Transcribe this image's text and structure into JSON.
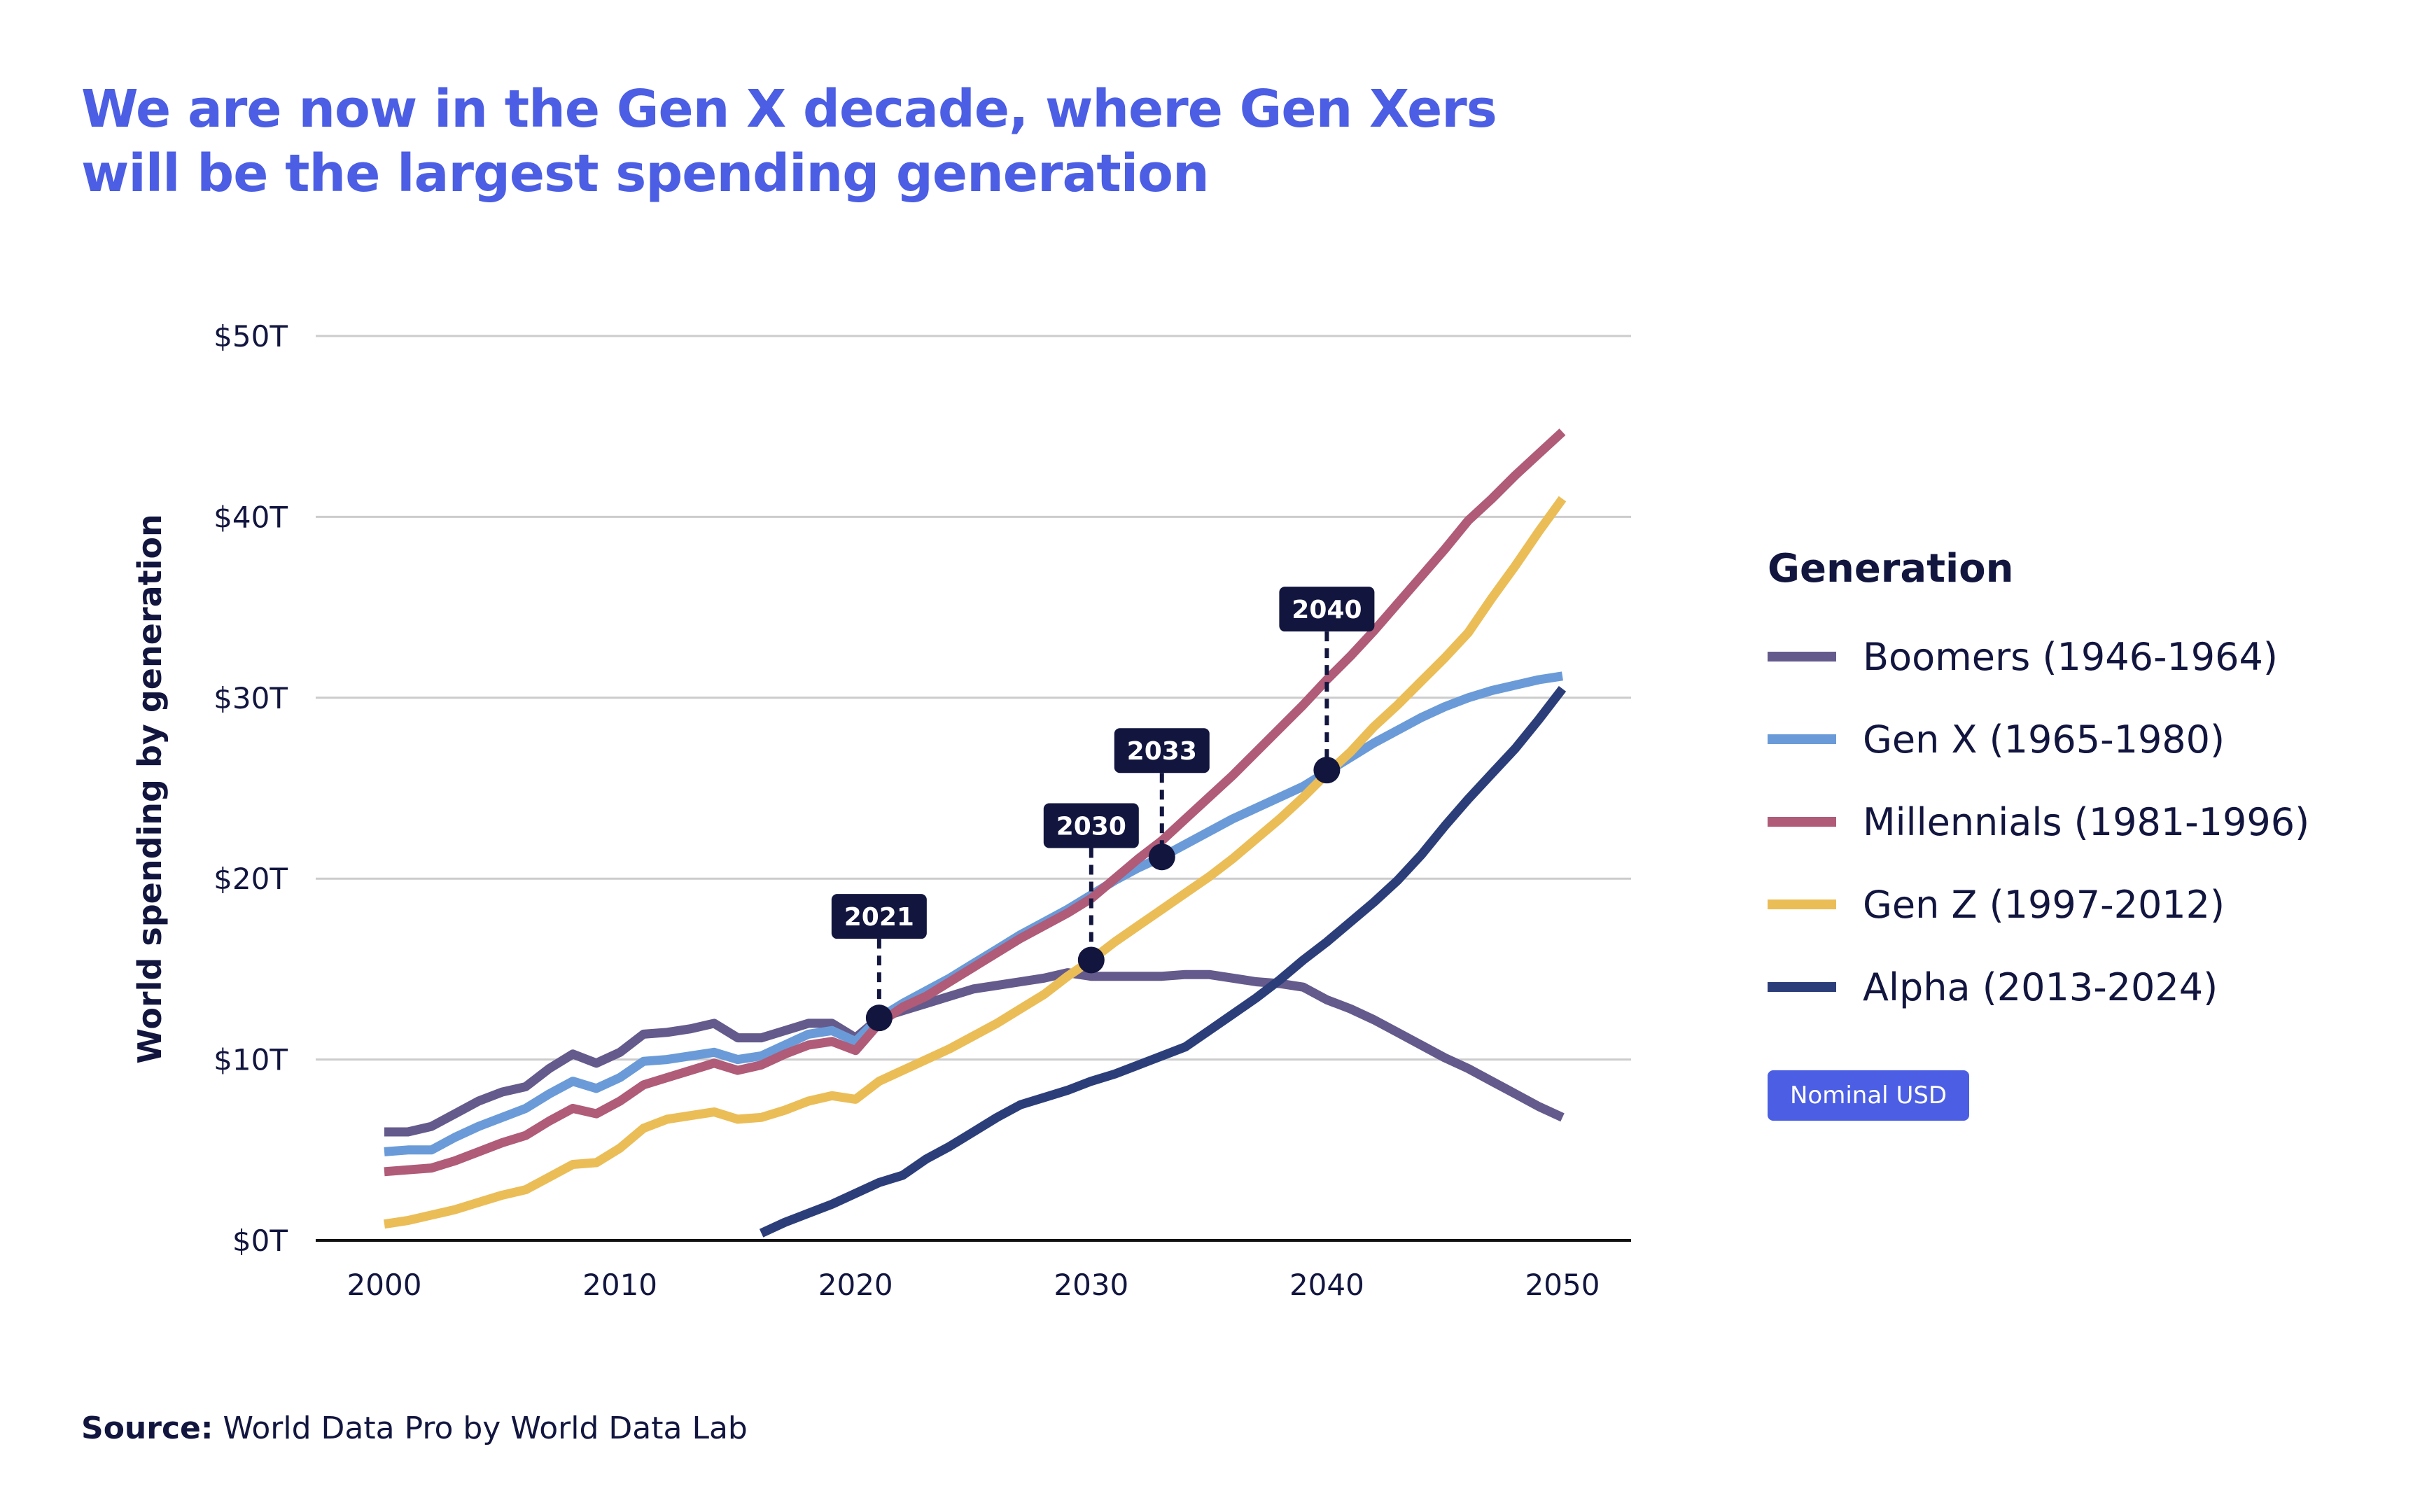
{
  "title_lines": [
    "We are now in the Gen X decade, where Gen Xers",
    "will be the largest spending generation"
  ],
  "source_label": "Source:",
  "source_text": " World Data Pro by World Data Lab",
  "badge": "Nominal USD",
  "chart_data": {
    "type": "line",
    "ylabel": "World spending by generation",
    "xlabel": "",
    "xlim": [
      2000,
      2050
    ],
    "ylim": [
      0,
      50
    ],
    "x_ticks": [
      2000,
      2010,
      2020,
      2030,
      2040,
      2050
    ],
    "y_ticks": [
      0,
      10,
      20,
      30,
      40,
      50
    ],
    "y_tick_labels": [
      "$0T",
      "$10T",
      "$20T",
      "$30T",
      "$40T",
      "$50T"
    ],
    "grid": "horizontal",
    "legend_title": "Generation",
    "legend_position": "right",
    "series": [
      {
        "name": "Boomers (1946-1964)",
        "color": "#655a8c",
        "start": 2000,
        "values": [
          6.0,
          6.0,
          6.3,
          7.0,
          7.7,
          8.2,
          8.5,
          9.5,
          10.3,
          9.8,
          10.4,
          11.4,
          11.5,
          11.7,
          12.0,
          11.2,
          11.2,
          11.6,
          12.0,
          12.0,
          11.2,
          12.3,
          12.7,
          13.1,
          13.5,
          13.9,
          14.1,
          14.3,
          14.5,
          14.8,
          14.6,
          14.6,
          14.6,
          14.6,
          14.7,
          14.7,
          14.5,
          14.3,
          14.2,
          14.0,
          13.3,
          12.8,
          12.2,
          11.5,
          10.8,
          10.1,
          9.5,
          8.8,
          8.1,
          7.4,
          6.8
        ]
      },
      {
        "name": "Gen X (1965-1980)",
        "color": "#6a9bd8",
        "start": 2000,
        "values": [
          4.9,
          5.0,
          5.0,
          5.7,
          6.3,
          6.8,
          7.3,
          8.1,
          8.8,
          8.4,
          9.0,
          9.9,
          10.0,
          10.2,
          10.4,
          10.0,
          10.2,
          10.8,
          11.4,
          11.6,
          11.0,
          12.3,
          13.1,
          13.8,
          14.5,
          15.3,
          16.1,
          16.9,
          17.6,
          18.3,
          19.1,
          19.9,
          20.6,
          21.2,
          21.9,
          22.6,
          23.3,
          23.9,
          24.5,
          25.1,
          25.9,
          26.7,
          27.5,
          28.2,
          28.9,
          29.5,
          30.0,
          30.4,
          30.7,
          31.0,
          31.2
        ]
      },
      {
        "name": "Millennials (1981-1996)",
        "color": "#b05b78",
        "start": 2000,
        "values": [
          3.8,
          3.9,
          4.0,
          4.4,
          4.9,
          5.4,
          5.8,
          6.6,
          7.3,
          7.0,
          7.7,
          8.6,
          9.0,
          9.4,
          9.8,
          9.4,
          9.7,
          10.3,
          10.8,
          11.0,
          10.5,
          12.0,
          12.9,
          13.5,
          14.3,
          15.1,
          15.9,
          16.7,
          17.4,
          18.1,
          18.9,
          20.0,
          21.1,
          22.1,
          23.3,
          24.5,
          25.7,
          27.0,
          28.3,
          29.6,
          31.0,
          32.3,
          33.7,
          35.2,
          36.7,
          38.2,
          39.8,
          41.0,
          42.3,
          43.5,
          44.7
        ]
      },
      {
        "name": "Gen Z (1997-2012)",
        "color": "#ebbd57",
        "start": 2000,
        "values": [
          0.9,
          1.1,
          1.4,
          1.7,
          2.1,
          2.5,
          2.8,
          3.5,
          4.2,
          4.3,
          5.1,
          6.2,
          6.7,
          6.9,
          7.1,
          6.7,
          6.8,
          7.2,
          7.7,
          8.0,
          7.8,
          8.8,
          9.4,
          10.0,
          10.6,
          11.3,
          12.0,
          12.8,
          13.6,
          14.6,
          15.5,
          16.5,
          17.4,
          18.3,
          19.2,
          20.1,
          21.1,
          22.2,
          23.3,
          24.5,
          25.8,
          27.0,
          28.4,
          29.6,
          30.9,
          32.2,
          33.6,
          35.5,
          37.3,
          39.2,
          41.0
        ]
      },
      {
        "name": "Alpha (2013-2024)",
        "color": "#2c3e7a",
        "start": 2016,
        "values": [
          0.4,
          1.0,
          1.5,
          2.0,
          2.6,
          3.2,
          3.6,
          4.5,
          5.2,
          6.0,
          6.8,
          7.5,
          7.9,
          8.3,
          8.8,
          9.2,
          9.7,
          10.2,
          10.7,
          11.6,
          12.5,
          13.4,
          14.4,
          15.5,
          16.5,
          17.6,
          18.7,
          19.9,
          21.3,
          22.9,
          24.4,
          25.8,
          27.2,
          28.8,
          30.5
        ]
      }
    ],
    "annotations": [
      {
        "label": "2021",
        "x": 2021,
        "y": 12.3
      },
      {
        "label": "2030",
        "x": 2030,
        "y": 15.5
      },
      {
        "label": "2033",
        "x": 2033,
        "y": 21.2
      },
      {
        "label": "2040",
        "x": 2040,
        "y": 26.0
      }
    ],
    "colors": {
      "title": "#4b5ee4",
      "annotation_box": "#12163f",
      "grid": "#cccccc",
      "badge": "#4b5ee4"
    }
  }
}
